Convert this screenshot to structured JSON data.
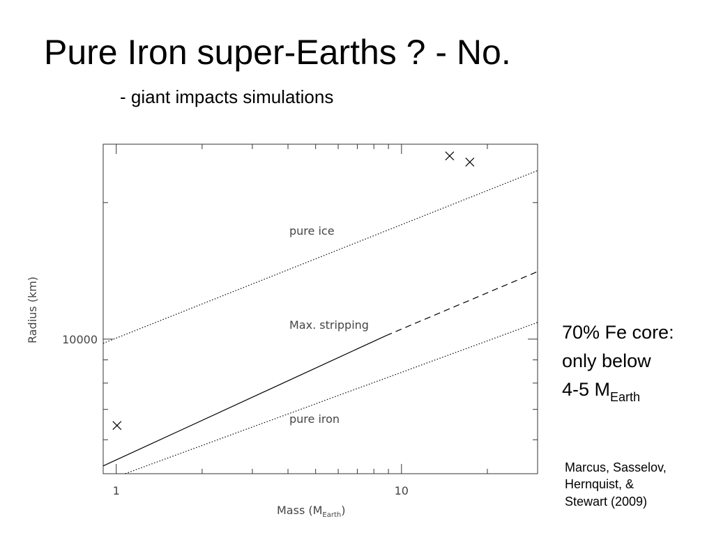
{
  "slide": {
    "title": "Pure Iron super-Earths ?  - No.",
    "subtitle": "- giant impacts simulations",
    "note": [
      "70% Fe core:",
      "only below",
      "4-5 M"
    ],
    "note_sub": "Earth",
    "citation": [
      "Marcus, Sasselov,",
      "Hernquist, &",
      "Stewart (2009)"
    ]
  },
  "chart_data": {
    "type": "line",
    "xlabel": "Mass (M",
    "xlabel_sub": "Earth",
    "xlabel_end": ")",
    "ylabel": "Radius (km)",
    "log_x": true,
    "log_y": true,
    "xlim": [
      0.9,
      30
    ],
    "ylim": [
      5050,
      26900
    ],
    "xticks": [
      1,
      10
    ],
    "xminor_ticks": [
      2,
      3,
      4,
      5,
      6,
      7,
      8,
      9,
      20
    ],
    "yticks": [
      10000
    ],
    "yminor_ticks": [
      6000,
      7000,
      8000,
      9000,
      20000
    ],
    "series": [
      {
        "name": "pure ice",
        "style": "dotted",
        "color": "#000000",
        "x": [
          0.9,
          30
        ],
        "values": [
          9790,
          23530
        ]
      },
      {
        "name": "Max. stripping",
        "style": "solid",
        "color": "#000000",
        "x": [
          0.9,
          8.83
        ],
        "values": [
          5253,
          10180
        ]
      },
      {
        "style": "dashed",
        "color": "#000000",
        "x": [
          8.83,
          30
        ],
        "values": [
          10180,
          14090
        ]
      },
      {
        "name": "pure iron",
        "style": "dotted",
        "color": "#000000",
        "x": [
          1.076,
          30
        ],
        "values": [
          5052,
          10885
        ]
      }
    ],
    "points": {
      "x": [
        1.006,
        14.75,
        17.36
      ],
      "values": [
        6450,
        25350,
        24560
      ],
      "color": "#000000"
    }
  }
}
